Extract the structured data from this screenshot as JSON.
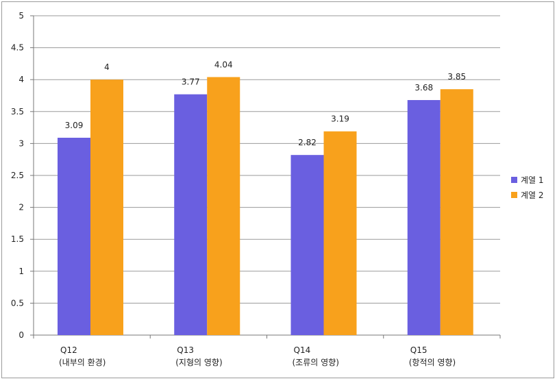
{
  "chart_data": {
    "type": "bar",
    "categories": [
      [
        "Q12",
        "(내부의 환경)"
      ],
      [
        "Q13",
        "(지형의 영향)"
      ],
      [
        "Q14",
        "(조류의 영향)"
      ],
      [
        "Q15",
        "(항적의 영향)"
      ]
    ],
    "series": [
      {
        "name": "계열 1",
        "color": "#6a5fe0",
        "values": [
          3.09,
          3.77,
          2.82,
          3.68
        ],
        "labels": [
          "3.09",
          "3.77",
          "2.82",
          "3.68"
        ]
      },
      {
        "name": "계열 2",
        "color": "#f8a11c",
        "values": [
          4,
          4.04,
          3.19,
          3.85
        ],
        "labels": [
          "4",
          "4.04",
          "3.19",
          "3.85"
        ]
      }
    ],
    "ylim": [
      0,
      5
    ],
    "yticks": [
      0,
      0.5,
      1,
      1.5,
      2,
      2.5,
      3,
      3.5,
      4,
      4.5,
      5
    ],
    "ytick_labels": [
      "0",
      "0.5",
      "1",
      "1.5",
      "2",
      "2.5",
      "3",
      "3.5",
      "4",
      "4.5",
      "5"
    ],
    "grid": true,
    "legend_position": "right",
    "title": "",
    "xlabel": "",
    "ylabel": ""
  }
}
